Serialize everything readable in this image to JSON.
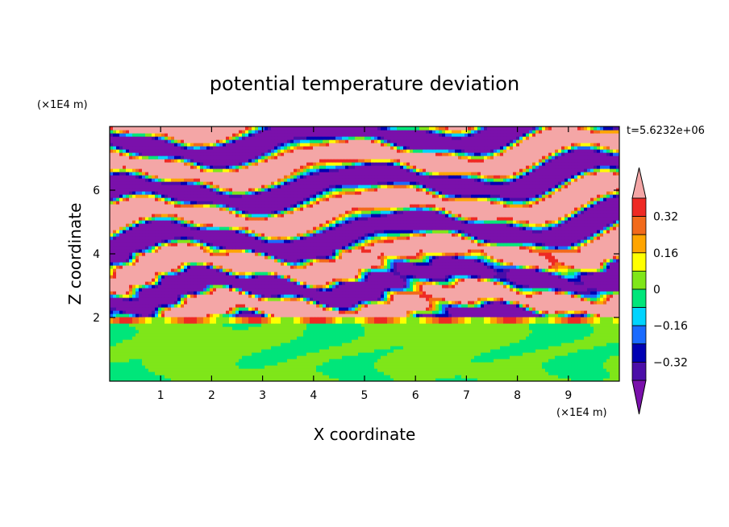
{
  "chart_data": {
    "type": "heatmap",
    "title": "potential temperature deviation",
    "xlabel": "X coordinate",
    "ylabel": "Z coordinate",
    "x_unit": "(×1E4 m)",
    "y_unit": "(×1E4 m)",
    "time_label": "t=5.6232e+06",
    "xlim": [
      0,
      10
    ],
    "ylim": [
      0,
      8
    ],
    "x_ticks": [
      "1",
      "2",
      "3",
      "4",
      "5",
      "6",
      "7",
      "8",
      "9"
    ],
    "x_tick_values": [
      1,
      2,
      3,
      4,
      5,
      6,
      7,
      8,
      9
    ],
    "y_ticks": [
      "2",
      "4",
      "6"
    ],
    "y_tick_values": [
      2,
      4,
      6
    ],
    "colorbar": {
      "labels": [
        {
          "text": "0.32",
          "value": 0.32
        },
        {
          "text": "0.16",
          "value": 0.16
        },
        {
          "text": "0",
          "value": 0
        },
        {
          "text": "−0.16",
          "value": -0.16
        },
        {
          "text": "−0.32",
          "value": -0.32
        }
      ],
      "levels": [
        {
          "min": 0.4,
          "max": null,
          "color": "#f4a6a6"
        },
        {
          "min": 0.32,
          "max": 0.4,
          "color": "#ee2a24"
        },
        {
          "min": 0.24,
          "max": 0.32,
          "color": "#f26a1b"
        },
        {
          "min": 0.16,
          "max": 0.24,
          "color": "#ffa500"
        },
        {
          "min": 0.08,
          "max": 0.16,
          "color": "#ffff00"
        },
        {
          "min": 0.0,
          "max": 0.08,
          "color": "#7fe619"
        },
        {
          "min": -0.08,
          "max": 0.0,
          "color": "#00e67a"
        },
        {
          "min": -0.16,
          "max": -0.08,
          "color": "#00d4ff"
        },
        {
          "min": -0.24,
          "max": -0.16,
          "color": "#1a6bff"
        },
        {
          "min": -0.32,
          "max": -0.24,
          "color": "#0000b3"
        },
        {
          "min": -0.4,
          "max": -0.32,
          "color": "#4b0ea8"
        },
        {
          "min": null,
          "max": -0.4,
          "color": "#7a10ab"
        }
      ]
    },
    "field_structure": "upper layer (z>2) alternating pink/purple bands, lower layer (z<2) green/teal turbulent field"
  }
}
